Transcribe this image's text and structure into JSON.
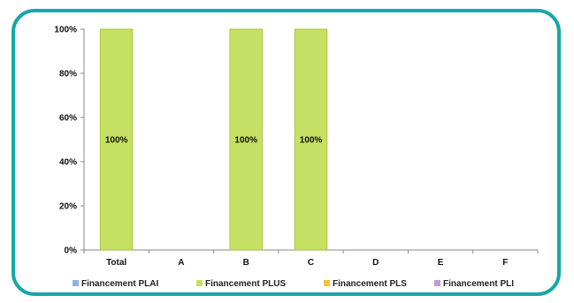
{
  "chart_data": {
    "type": "bar",
    "stacked": true,
    "title": "",
    "xlabel": "",
    "ylabel": "",
    "ylim": [
      0,
      100
    ],
    "y_ticks": [
      "0%",
      "20%",
      "40%",
      "60%",
      "80%",
      "100%"
    ],
    "categories": [
      "Total",
      "A",
      "B",
      "C",
      "D",
      "E",
      "F"
    ],
    "series": [
      {
        "name": "Financement PLAI",
        "color": "#8db3e2",
        "values": [
          0,
          0,
          0,
          0,
          0,
          0,
          0
        ]
      },
      {
        "name": "Financement PLUS",
        "color": "#c5e063",
        "values": [
          100,
          0,
          100,
          100,
          0,
          0,
          0
        ]
      },
      {
        "name": "Financement PLS",
        "color": "#f2c43a",
        "values": [
          0,
          0,
          0,
          0,
          0,
          0,
          0
        ]
      },
      {
        "name": "Financement PLI",
        "color": "#c39bd3",
        "values": [
          0,
          0,
          0,
          0,
          0,
          0,
          0
        ]
      }
    ],
    "data_labels": [
      "100%",
      "",
      "100%",
      "100%",
      "",
      "",
      ""
    ],
    "grid": false,
    "legend_position": "bottom"
  }
}
